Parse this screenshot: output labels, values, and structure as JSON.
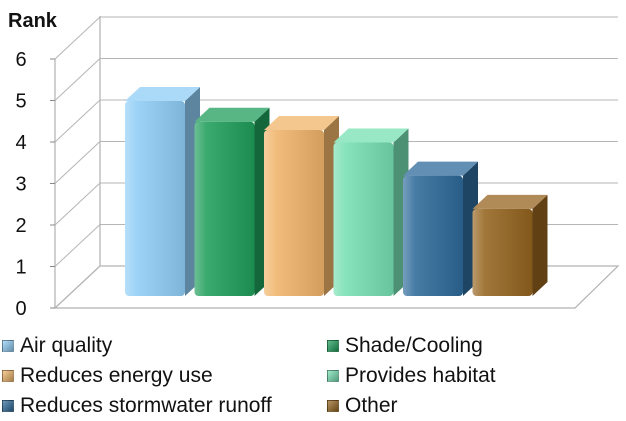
{
  "chart_data": {
    "type": "bar",
    "title": "",
    "ylabel": "Rank",
    "xlabel": "",
    "ylim": [
      0,
      6
    ],
    "yticks": [
      "0",
      "1",
      "2",
      "3",
      "4",
      "5",
      "6"
    ],
    "grid": true,
    "legend_position": "bottom",
    "categories": [
      "Air quality",
      "Shade/Cooling",
      "Reduces energy use",
      "Provides habitat",
      "Reduces stormwater runoff",
      "Other"
    ],
    "values": [
      4.7,
      4.2,
      4.0,
      3.7,
      2.9,
      2.1
    ],
    "colors": [
      "#8fcdf6",
      "#1f9e5a",
      "#f0b46a",
      "#76dfb2",
      "#2e6a99",
      "#95641f"
    ]
  }
}
